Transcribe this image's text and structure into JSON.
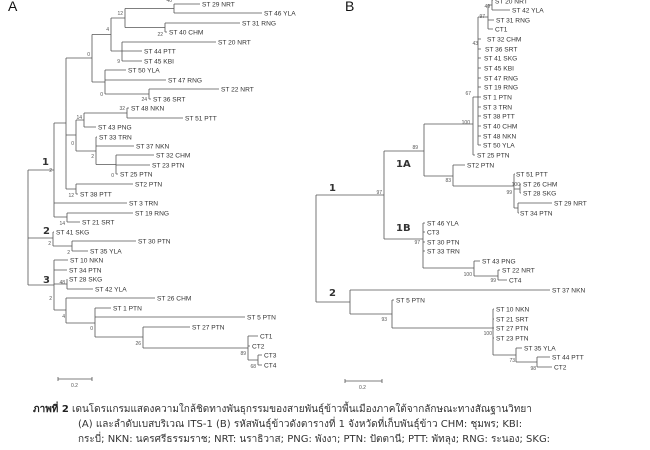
{
  "panels": {
    "a_label": "A",
    "b_label": "B"
  },
  "tree_a": {
    "leaves": [
      "ST 29 NRT",
      "ST 46 YLA",
      "ST 31 RNG",
      "ST 40 CHM",
      "ST 20 NRT",
      "ST 44 PTT",
      "ST 45 KBI",
      "ST 50 YLA",
      "ST 47 RNG",
      "ST 22 NRT",
      "ST 36 SRT",
      "ST 48 NKN",
      "ST 51 PTT",
      "ST 43 PNG",
      "ST 33 TRN",
      "ST 37 NKN",
      "ST 32 CHM",
      "ST 23 PTN",
      "ST 25 PTN",
      "ST2 PTN",
      "ST 38 PTT",
      "ST 3 TRN",
      "ST 19 RNG",
      "ST 21 SRT",
      "ST 41 SKG",
      "ST 30 PTN",
      "ST 35 YLA",
      "ST 10 NKN",
      "ST 34 PTN",
      "ST 28 SKG",
      "ST 42 YLA",
      "ST 26 CHM",
      "ST 1 PTN",
      "ST 5 PTN",
      "ST 27 PTN",
      "CT1",
      "CT2",
      "CT3",
      "CT4"
    ],
    "bootstrap": [
      "40",
      "12",
      "22",
      "4",
      "9",
      "0",
      "0",
      "24",
      "32",
      "14",
      "0",
      "2",
      "0",
      "12",
      "2",
      "14",
      "2",
      "2",
      "48",
      "2",
      "4",
      "0",
      "26",
      "89",
      "68"
    ],
    "clades": [
      "1",
      "2",
      "3"
    ],
    "scale_label": "0.2"
  },
  "tree_b": {
    "leaves": [
      "ST 20 NRT",
      "ST 42 YLA",
      "ST 31 RNG",
      "CT1",
      "ST 32 CHM",
      "ST 36 SRT",
      "ST 41 SKG",
      "ST 45 KBI",
      "ST 47 RNG",
      "ST 19 RNG",
      "ST 1 PTN",
      "ST 3 TRN",
      "ST 38 PTT",
      "ST 40 CHM",
      "ST 48 NKN",
      "ST 50 YLA",
      "ST 25 PTN",
      "ST2 PTN",
      "ST 51 PTT",
      "ST 26 CHM",
      "ST 28 SKG",
      "ST 29 NRT",
      "ST 34 PTN",
      "ST 46 YLA",
      "CT3",
      "ST 30 PTN",
      "ST 33 TRN",
      "ST 43 PNG",
      "ST 22 NRT",
      "CT4",
      "ST 37 NKN",
      "ST 5 PTN",
      "ST 10 NKN",
      "ST 21 SRT",
      "ST 27 PTN",
      "ST 23 PTN",
      "ST 35 YLA",
      "ST 44 PTT",
      "CT2"
    ],
    "bootstrap": [
      "49",
      "97",
      "43",
      "67",
      "100",
      "89",
      "97",
      "83",
      "100",
      "99",
      "97",
      "100",
      "99",
      "93",
      "100",
      "73",
      "98"
    ],
    "clades": [
      "1",
      "1A",
      "1B",
      "2"
    ],
    "scale_label": "0.2"
  },
  "caption": {
    "label": "ภาพที่ 2",
    "line1": "เดนโดรแกรมแสดงความใกล้ชิดทางพันธุกรรมของสายพันธุ์ข้าวพื้นเมืองภาคใต้จากลักษณะทางสัณฐานวิทยา",
    "line2": "(A)   และลำดับเบสบริเวณ ITS-1  (B)  รหัสพันธุ์ข้าวดังตารางที่ 1 จังหวัดที่เก็บพันธุ์ข้าว CHM:  ชุมพร;  KBI:",
    "line3": "กระบี่; NKN: นครศรีธรรมราช; NRT: นราธิวาส; PNG: พังงา; PTN: ปัตตานี; PTT: พัทลุง; RNG: ระนอง; SKG:"
  }
}
